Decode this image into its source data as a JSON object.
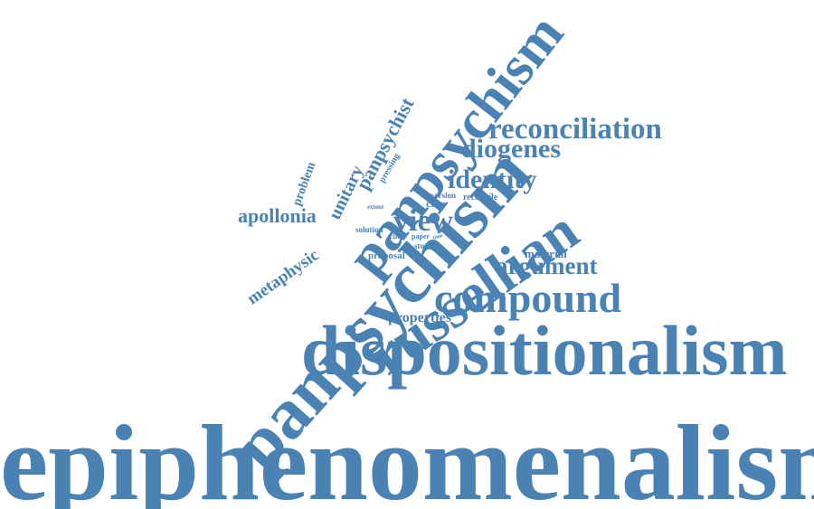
{
  "style": {
    "word_color": "#4a82b4",
    "background": "#ffffff"
  },
  "words": {
    "w01": "epiphenomenalism",
    "w02": "dispositionalism",
    "w03": "panpsychism",
    "w04": "russellian",
    "w05": "compound",
    "w06": "reconciliation",
    "w07": "diogenes",
    "w08": "identity",
    "w09": "argument",
    "w10": "view",
    "w11": "apollonia",
    "w12": "panpsychist",
    "w13": "panpsychism",
    "w14": "unitary",
    "w15": "metaphysic",
    "w16": "properties",
    "w17": "problem",
    "w18": "material",
    "w19": "case",
    "w20": "pressing",
    "w21": "proposal",
    "w22": "version",
    "w23": "reconcile",
    "w24": "studies",
    "w25": "solution",
    "w26": "extent",
    "w27": "claim",
    "w28": "paper",
    "w29": "time"
  }
}
